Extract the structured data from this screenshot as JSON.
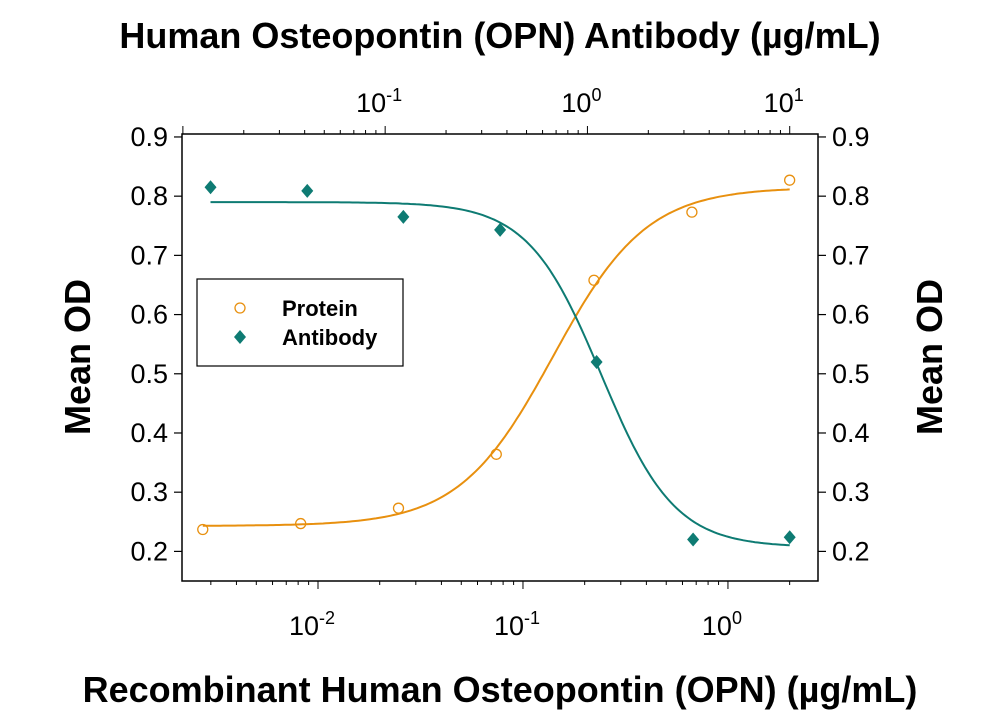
{
  "chart_data": {
    "type": "scatter",
    "title": "Human Osteopontin (OPN) Antibody (µg/mL)",
    "xlabel": "Recombinant Human Osteopontin (OPN) (µg/mL)",
    "ylabel": "Mean OD",
    "ylabel_right": "Mean OD",
    "xscale": "log",
    "x_bottom_lim": [
      0.00217,
      2.75
    ],
    "x_top_lim": [
      0.0099,
      13.8
    ],
    "ylim": [
      0.15,
      0.905
    ],
    "y_ticks": [
      "0.2",
      "0.3",
      "0.4",
      "0.5",
      "0.6",
      "0.7",
      "0.8",
      "0.9"
    ],
    "x_bottom_ticks": [
      {
        "base": "10",
        "exp": "-2",
        "value": 0.01
      },
      {
        "base": "10",
        "exp": "-1",
        "value": 0.1
      },
      {
        "base": "10",
        "exp": "0",
        "value": 1
      }
    ],
    "x_top_ticks": [
      {
        "base": "10",
        "exp": "-1",
        "value": 0.1
      },
      {
        "base": "10",
        "exp": "0",
        "value": 1
      },
      {
        "base": "10",
        "exp": "1",
        "value": 10
      }
    ],
    "grid": false,
    "legend_placement": "middle-left",
    "series": [
      {
        "name": "Protein",
        "axis": "bottom",
        "marker": "open-circle",
        "color": "#E8900F",
        "x": [
          0.00274,
          0.00823,
          0.0247,
          0.0741,
          0.222,
          0.667,
          2.0
        ],
        "y": [
          0.237,
          0.247,
          0.273,
          0.364,
          0.658,
          0.773,
          0.827
        ],
        "fit": {
          "model": "4PL",
          "bottom": 0.243,
          "top": 0.815,
          "ec50": 0.14,
          "hill": 1.9
        }
      },
      {
        "name": "Antibody",
        "axis": "top",
        "marker": "filled-diamond",
        "color": "#0E7B73",
        "x": [
          0.0137,
          0.0412,
          0.123,
          0.37,
          1.11,
          3.33,
          10.0
        ],
        "y": [
          0.815,
          0.809,
          0.765,
          0.743,
          0.52,
          0.22,
          0.224
        ],
        "fit": {
          "model": "4PL",
          "bottom": 0.207,
          "top": 0.79,
          "ec50": 1.17,
          "hill": -2.4
        }
      }
    ]
  }
}
